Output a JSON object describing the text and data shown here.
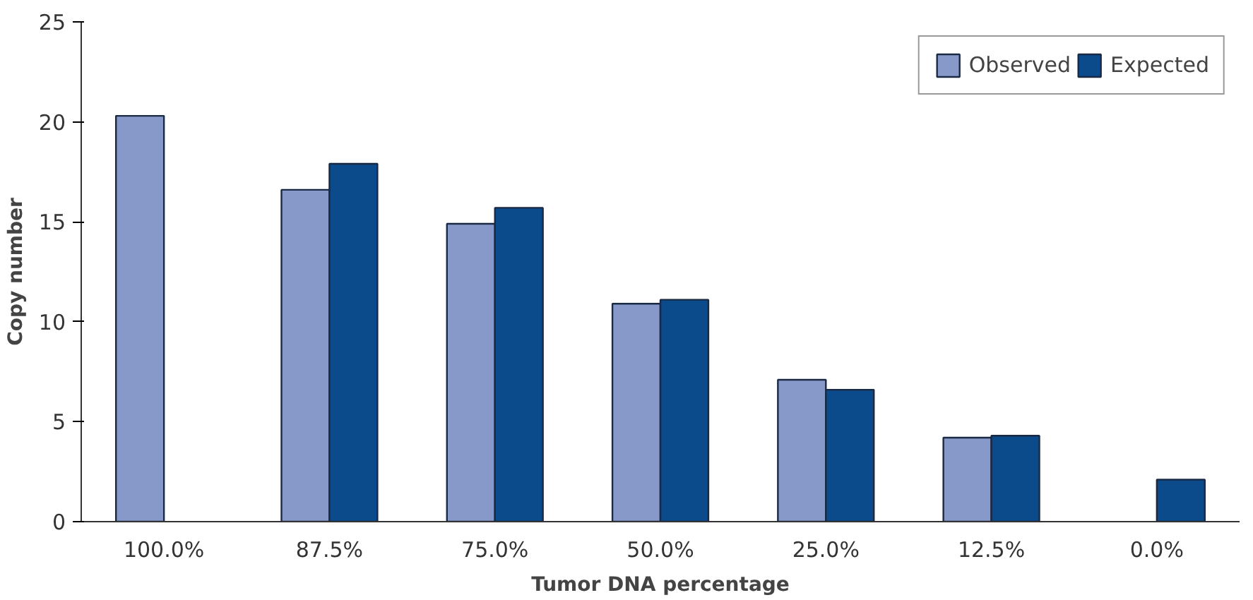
{
  "chart_data": {
    "type": "bar",
    "xlabel": "Tumor DNA percentage",
    "ylabel": "Copy number",
    "categories": [
      "100.0%",
      "87.5%",
      "75.0%",
      "50.0%",
      "25.0%",
      "12.5%",
      "0.0%"
    ],
    "series": [
      {
        "name": "Observed",
        "color": "#8799c9",
        "values": [
          20.3,
          16.6,
          14.9,
          10.9,
          7.1,
          4.2,
          null
        ]
      },
      {
        "name": "Expected",
        "color": "#0b4a8b",
        "values": [
          null,
          17.9,
          15.7,
          11.1,
          6.6,
          4.3,
          2.1
        ]
      }
    ],
    "ylim": [
      0,
      25
    ],
    "yticks": [
      0,
      5,
      10,
      15,
      20,
      25
    ],
    "grid": false,
    "legend": "top right"
  }
}
